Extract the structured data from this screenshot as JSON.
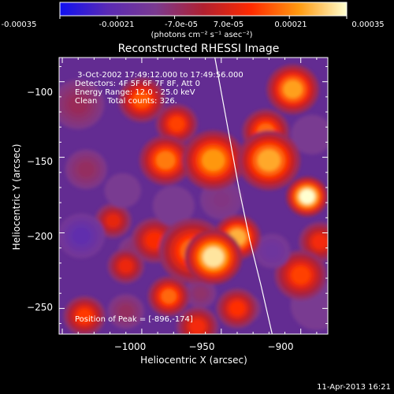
{
  "chart_data": {
    "type": "heatmap",
    "title": "Reconstructed RHESSI Image",
    "colorbar": {
      "ticks": [
        -0.00035,
        -0.00021,
        -7e-05,
        7e-05,
        0.00021,
        0.00035
      ],
      "tick_labels": [
        "-0.00035",
        "-0.00021",
        "-7.0e-05",
        "7.0e-05",
        "0.00021",
        "0.00035"
      ],
      "unit_label": "(photons cm⁻² s⁻¹ asec⁻²)",
      "range": [
        -0.00035,
        0.00035
      ],
      "colormap": [
        "#1010f0",
        "#5a2ab4",
        "#7a3a90",
        "#b02030",
        "#ff2a00",
        "#ff9a10",
        "#ffffd0"
      ]
    },
    "xlabel": "Heliocentric X (arcsec)",
    "ylabel": "Heliocentric Y (arcsec)",
    "xlim": [
      -1052,
      -883
    ],
    "ylim": [
      -267,
      -84
    ],
    "xticks": [
      -1000,
      -950,
      -900
    ],
    "xtick_labels": [
      "−1000",
      "−950",
      "−900"
    ],
    "yticks": [
      -100,
      -150,
      -200,
      -250
    ],
    "ytick_labels": [
      "−100",
      "−150",
      "−200",
      "−250"
    ],
    "annotations": [
      " 3-Oct-2002 17:49:12.000 to 17:49:56.000",
      "Detectors: 4F 5F 6F 7F 8F, Att 0",
      "Energy Range: 12.0 - 25.0 keV",
      "Clean    Total counts: 326."
    ],
    "peak_label": "Position of Peak = [-896,-174]",
    "peak": {
      "x": -896,
      "y": -174
    },
    "limb_curve": [
      {
        "x": -954,
        "y": -84
      },
      {
        "x": -946,
        "y": -130
      },
      {
        "x": -939,
        "y": -170
      },
      {
        "x": -932,
        "y": -205
      },
      {
        "x": -925,
        "y": -235
      },
      {
        "x": -918,
        "y": -267
      }
    ],
    "blobs": [
      {
        "x": -896,
        "y": -176,
        "v": 0.00035,
        "s": 8
      },
      {
        "x": -955,
        "y": -216,
        "v": 0.00032,
        "s": 11
      },
      {
        "x": -940,
        "y": -203,
        "v": 0.00026,
        "s": 9
      },
      {
        "x": -920,
        "y": -152,
        "v": 0.00025,
        "s": 12
      },
      {
        "x": -955,
        "y": -152,
        "v": 0.00023,
        "s": 12
      },
      {
        "x": -968,
        "y": -212,
        "v": 0.00018,
        "s": 13
      },
      {
        "x": -985,
        "y": -152,
        "v": 0.0002,
        "s": 10
      },
      {
        "x": -905,
        "y": -105,
        "v": 0.00024,
        "s": 10
      },
      {
        "x": -922,
        "y": -133,
        "v": 0.00018,
        "s": 9
      },
      {
        "x": -1000,
        "y": -112,
        "v": 0.00016,
        "s": 9
      },
      {
        "x": -978,
        "y": -128,
        "v": 0.00014,
        "s": 8
      },
      {
        "x": -900,
        "y": -228,
        "v": 0.00014,
        "s": 10
      },
      {
        "x": -888,
        "y": -206,
        "v": 0.0001,
        "s": 8
      },
      {
        "x": -983,
        "y": -242,
        "v": 0.00018,
        "s": 8
      },
      {
        "x": -1010,
        "y": -222,
        "v": 9e-05,
        "s": 7
      },
      {
        "x": -1036,
        "y": -255,
        "v": 0.00013,
        "s": 8
      },
      {
        "x": -992,
        "y": -205,
        "v": 0.00011,
        "s": 9
      },
      {
        "x": -965,
        "y": -262,
        "v": 0.0001,
        "s": 8
      },
      {
        "x": -940,
        "y": -250,
        "v": 0.00012,
        "s": 8
      },
      {
        "x": -1018,
        "y": -192,
        "v": 8e-05,
        "s": 7
      },
      {
        "x": -1035,
        "y": -158,
        "v": -6e-05,
        "s": 8
      },
      {
        "x": -1038,
        "y": -202,
        "v": -0.00021,
        "s": 9
      },
      {
        "x": -1012,
        "y": -172,
        "v": -0.00012,
        "s": 7
      },
      {
        "x": -1005,
        "y": -212,
        "v": -8e-05,
        "s": 6
      },
      {
        "x": -980,
        "y": -182,
        "v": -0.00012,
        "s": 8
      },
      {
        "x": -950,
        "y": -178,
        "v": -0.0001,
        "s": 8
      },
      {
        "x": -918,
        "y": -212,
        "v": -0.00016,
        "s": 7
      },
      {
        "x": -890,
        "y": -248,
        "v": -0.00012,
        "s": 10
      },
      {
        "x": -893,
        "y": -135,
        "v": -0.00012,
        "s": 8
      },
      {
        "x": -935,
        "y": -250,
        "v": -6e-05,
        "s": 6
      },
      {
        "x": -963,
        "y": -240,
        "v": -7e-05,
        "s": 6
      },
      {
        "x": -1010,
        "y": -252,
        "v": -6e-05,
        "s": 7
      },
      {
        "x": -1040,
        "y": -115,
        "v": -5e-05,
        "s": 10
      }
    ]
  },
  "footer": {
    "date": "11-Apr-2013 16:21"
  }
}
